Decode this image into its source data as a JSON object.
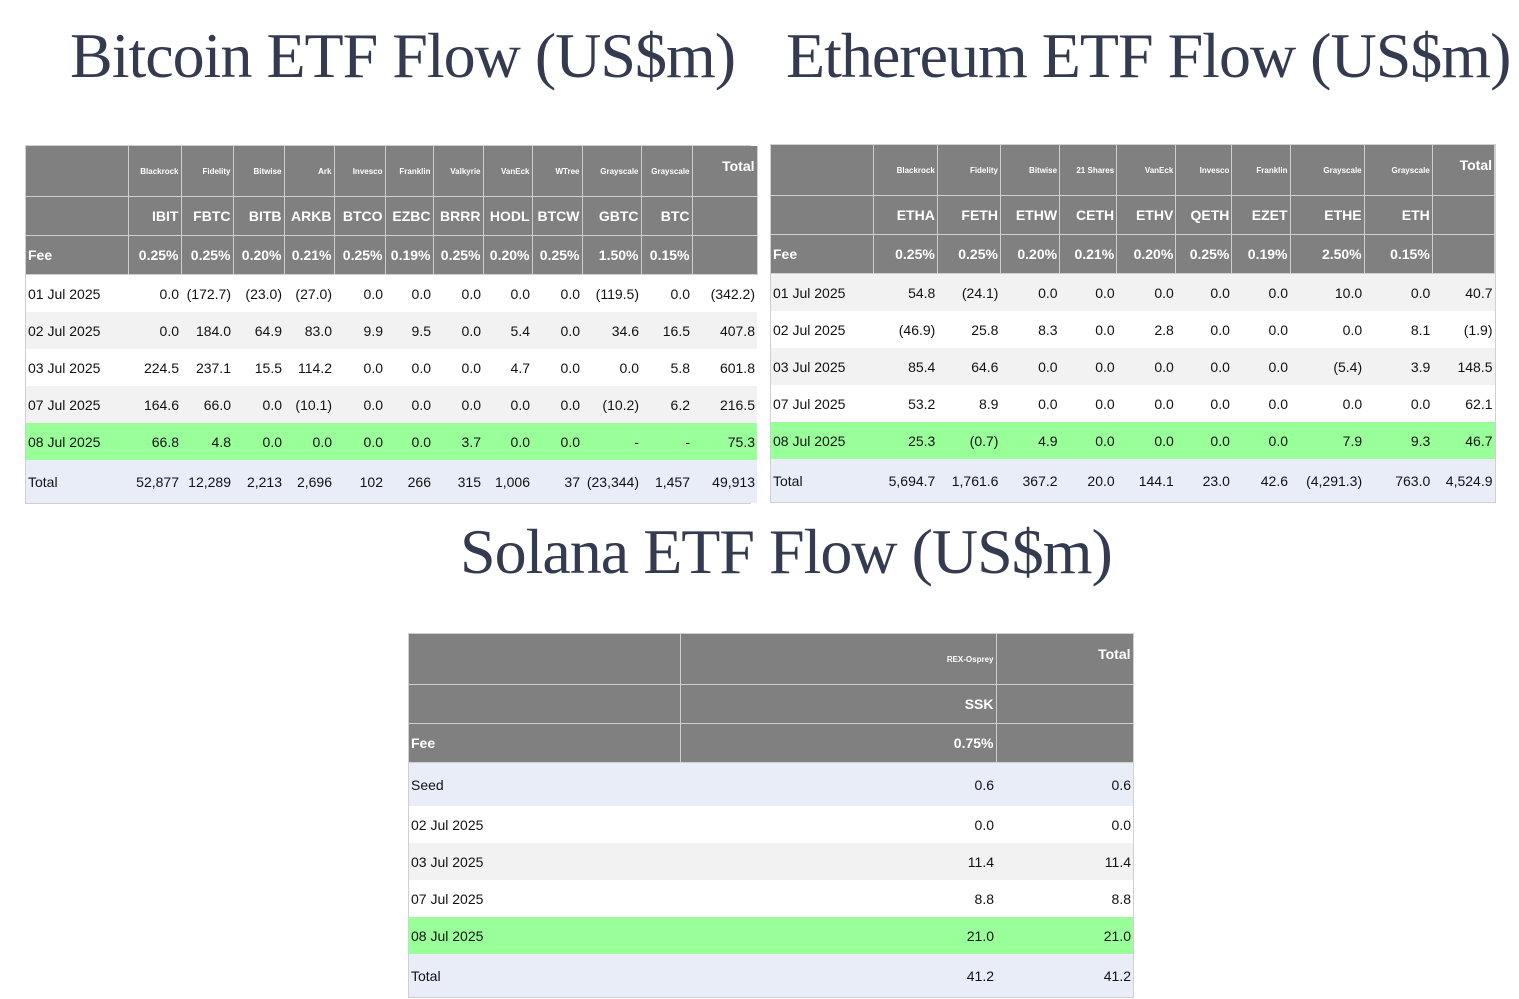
{
  "bitcoin": {
    "title": "Bitcoin ETF Flow (US$m)",
    "issuers": [
      "Blackrock",
      "Fidelity",
      "Bitwise",
      "Ark",
      "Invesco",
      "Franklin",
      "Valkyrie",
      "VanEck",
      "WTree",
      "Grayscale",
      "Grayscale"
    ],
    "tickers": [
      "IBIT",
      "FBTC",
      "BITB",
      "ARKB",
      "BTCO",
      "EZBC",
      "BRRR",
      "HODL",
      "BTCW",
      "GBTC",
      "BTC"
    ],
    "fee_label": "Fee",
    "fees": [
      "0.25%",
      "0.25%",
      "0.20%",
      "0.21%",
      "0.25%",
      "0.19%",
      "0.25%",
      "0.20%",
      "0.25%",
      "1.50%",
      "0.15%"
    ],
    "total_label": "Total",
    "rows": [
      {
        "date": "01 Jul 2025",
        "style": "w",
        "values": [
          "0.0",
          "(172.7)",
          "(23.0)",
          "(27.0)",
          "0.0",
          "0.0",
          "0.0",
          "0.0",
          "0.0",
          "(119.5)",
          "0.0",
          "(342.2)"
        ]
      },
      {
        "date": "02 Jul 2025",
        "style": "g",
        "values": [
          "0.0",
          "184.0",
          "64.9",
          "83.0",
          "9.9",
          "9.5",
          "0.0",
          "5.4",
          "0.0",
          "34.6",
          "16.5",
          "407.8"
        ]
      },
      {
        "date": "03 Jul 2025",
        "style": "w",
        "values": [
          "224.5",
          "237.1",
          "15.5",
          "114.2",
          "0.0",
          "0.0",
          "0.0",
          "4.7",
          "0.0",
          "0.0",
          "5.8",
          "601.8"
        ]
      },
      {
        "date": "07 Jul 2025",
        "style": "g",
        "values": [
          "164.6",
          "66.0",
          "0.0",
          "(10.1)",
          "0.0",
          "0.0",
          "0.0",
          "0.0",
          "0.0",
          "(10.2)",
          "6.2",
          "216.5"
        ]
      },
      {
        "date": "08 Jul 2025",
        "style": "hl",
        "values": [
          "66.8",
          "4.8",
          "0.0",
          "0.0",
          "0.0",
          "0.0",
          "3.7",
          "0.0",
          "0.0",
          "-",
          "-",
          "75.3"
        ]
      },
      {
        "date": "Total",
        "style": "tot",
        "values": [
          "52,877",
          "12,289",
          "2,213",
          "2,696",
          "102",
          "266",
          "315",
          "1,006",
          "37",
          "(23,344)",
          "1,457",
          "49,913"
        ]
      }
    ]
  },
  "ethereum": {
    "title": "Ethereum ETF Flow (US$m)",
    "issuers": [
      "Blackrock",
      "Fidelity",
      "Bitwise",
      "21 Shares",
      "VanEck",
      "Invesco",
      "Franklin",
      "Grayscale",
      "Grayscale"
    ],
    "tickers": [
      "ETHA",
      "FETH",
      "ETHW",
      "CETH",
      "ETHV",
      "QETH",
      "EZET",
      "ETHE",
      "ETH"
    ],
    "fee_label": "Fee",
    "fees": [
      "0.25%",
      "0.25%",
      "0.20%",
      "0.21%",
      "0.20%",
      "0.25%",
      "0.19%",
      "2.50%",
      "0.15%"
    ],
    "total_label": "Total",
    "rows": [
      {
        "date": "01 Jul 2025",
        "style": "g",
        "values": [
          "54.8",
          "(24.1)",
          "0.0",
          "0.0",
          "0.0",
          "0.0",
          "0.0",
          "10.0",
          "0.0",
          "40.7"
        ]
      },
      {
        "date": "02 Jul 2025",
        "style": "w",
        "values": [
          "(46.9)",
          "25.8",
          "8.3",
          "0.0",
          "2.8",
          "0.0",
          "0.0",
          "0.0",
          "8.1",
          "(1.9)"
        ]
      },
      {
        "date": "03 Jul 2025",
        "style": "g",
        "values": [
          "85.4",
          "64.6",
          "0.0",
          "0.0",
          "0.0",
          "0.0",
          "0.0",
          "(5.4)",
          "3.9",
          "148.5"
        ]
      },
      {
        "date": "07 Jul 2025",
        "style": "w",
        "values": [
          "53.2",
          "8.9",
          "0.0",
          "0.0",
          "0.0",
          "0.0",
          "0.0",
          "0.0",
          "0.0",
          "62.1"
        ]
      },
      {
        "date": "08 Jul 2025",
        "style": "hl",
        "values": [
          "25.3",
          "(0.7)",
          "4.9",
          "0.0",
          "0.0",
          "0.0",
          "0.0",
          "7.9",
          "9.3",
          "46.7"
        ]
      },
      {
        "date": "Total",
        "style": "tot",
        "values": [
          "5,694.7",
          "1,761.6",
          "367.2",
          "20.0",
          "144.1",
          "23.0",
          "42.6",
          "(4,291.3)",
          "763.0",
          "4,524.9"
        ]
      }
    ]
  },
  "solana": {
    "title": "Solana ETF Flow (US$m)",
    "issuers": [
      "REX-Osprey"
    ],
    "tickers": [
      "SSK"
    ],
    "fee_label": "Fee",
    "fees": [
      "0.75%"
    ],
    "total_label": "Total",
    "rows": [
      {
        "date": "Seed",
        "style": "tot",
        "values": [
          "0.6",
          "0.6"
        ]
      },
      {
        "date": "02 Jul 2025",
        "style": "w",
        "values": [
          "0.0",
          "0.0"
        ]
      },
      {
        "date": "03 Jul 2025",
        "style": "g",
        "values": [
          "11.4",
          "11.4"
        ]
      },
      {
        "date": "07 Jul 2025",
        "style": "w",
        "values": [
          "8.8",
          "8.8"
        ]
      },
      {
        "date": "08 Jul 2025",
        "style": "hl",
        "values": [
          "21.0",
          "21.0"
        ]
      },
      {
        "date": "Total",
        "style": "tot",
        "values": [
          "41.2",
          "41.2"
        ]
      }
    ]
  }
}
